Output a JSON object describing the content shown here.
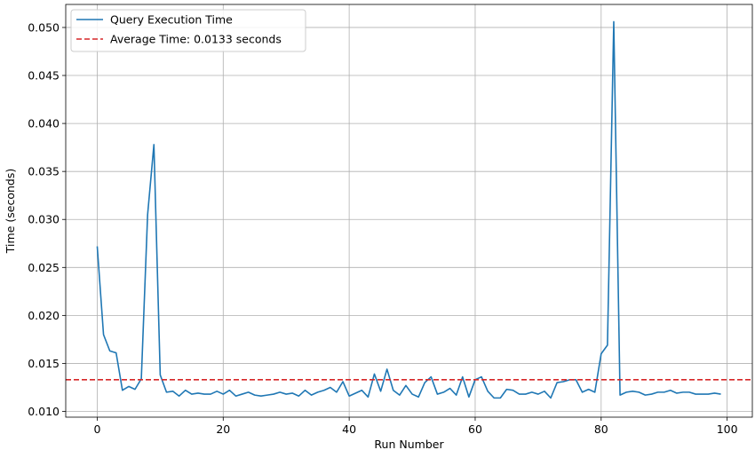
{
  "chart_data": {
    "type": "line",
    "xlabel": "Run Number",
    "ylabel": "Time (seconds)",
    "xlim": [
      -5,
      104
    ],
    "ylim": [
      0.0094,
      0.0524
    ],
    "x_ticks": [
      0,
      20,
      40,
      60,
      80,
      100
    ],
    "y_ticks": [
      0.01,
      0.015,
      0.02,
      0.025,
      0.03,
      0.035,
      0.04,
      0.045,
      0.05
    ],
    "x_tick_labels": [
      "0",
      "20",
      "40",
      "60",
      "80",
      "100"
    ],
    "y_tick_labels": [
      "0.010",
      "0.015",
      "0.020",
      "0.025",
      "0.030",
      "0.035",
      "0.040",
      "0.045",
      "0.050"
    ],
    "grid": true,
    "legend_position": "top-left",
    "series": [
      {
        "name": "Query Execution Time",
        "color": "#1f77b4",
        "style": "solid",
        "values": [
          0.0272,
          0.018,
          0.0163,
          0.0161,
          0.0122,
          0.0126,
          0.0123,
          0.0134,
          0.0305,
          0.0378,
          0.0138,
          0.012,
          0.0121,
          0.0116,
          0.0122,
          0.0118,
          0.0119,
          0.0118,
          0.0118,
          0.0121,
          0.0118,
          0.0122,
          0.0116,
          0.0118,
          0.012,
          0.0117,
          0.0116,
          0.0117,
          0.0118,
          0.012,
          0.0118,
          0.0119,
          0.0116,
          0.0122,
          0.0117,
          0.012,
          0.0122,
          0.0125,
          0.012,
          0.0131,
          0.0116,
          0.0119,
          0.0122,
          0.0115,
          0.0139,
          0.0121,
          0.0144,
          0.0122,
          0.0117,
          0.0127,
          0.0118,
          0.0115,
          0.013,
          0.0136,
          0.0118,
          0.012,
          0.0124,
          0.0117,
          0.0136,
          0.0115,
          0.0133,
          0.0136,
          0.0121,
          0.0114,
          0.0114,
          0.0123,
          0.0122,
          0.0118,
          0.0118,
          0.012,
          0.0118,
          0.0121,
          0.0114,
          0.013,
          0.0131,
          0.0133,
          0.0133,
          0.012,
          0.0123,
          0.012,
          0.016,
          0.0169,
          0.0506,
          0.0117,
          0.012,
          0.0121,
          0.012,
          0.0117,
          0.0118,
          0.012,
          0.012,
          0.0122,
          0.0119,
          0.012,
          0.012,
          0.0118,
          0.0118,
          0.0118,
          0.0119,
          0.0118
        ]
      },
      {
        "name": "Average Time: 0.0133 seconds",
        "color": "#d62728",
        "style": "dashed",
        "constant": 0.0133
      }
    ]
  }
}
